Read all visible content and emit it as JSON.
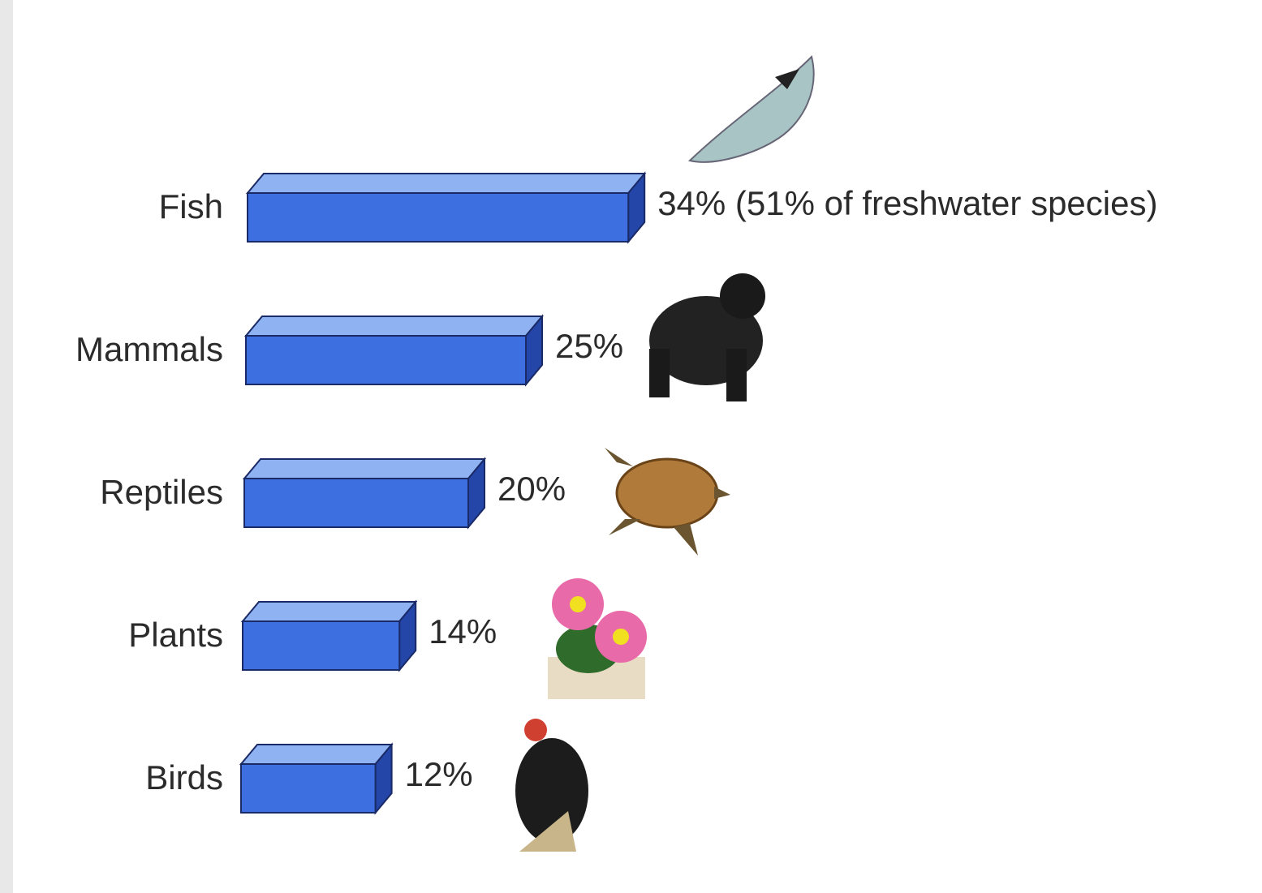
{
  "chart_data": {
    "type": "bar3d-horizontal",
    "categories": [
      "Fish",
      "Mammals",
      "Reptiles",
      "Plants",
      "Birds"
    ],
    "values": [
      34,
      25,
      20,
      14,
      12
    ],
    "value_labels": [
      "34% (51% of freshwater species)",
      "25%",
      "20%",
      "14%",
      "12%"
    ],
    "color": "#3d6fe0"
  }
}
